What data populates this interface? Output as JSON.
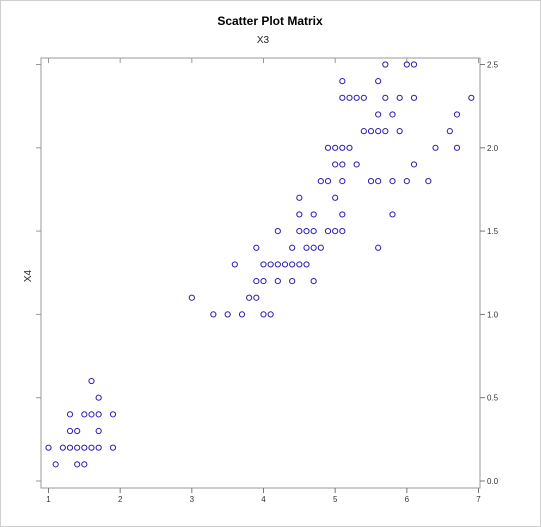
{
  "chart_data": {
    "type": "scatter",
    "title": "Scatter Plot Matrix",
    "top_label": "X3",
    "ylabel": "X4",
    "xlim": [
      1,
      7
    ],
    "ylim": [
      0,
      2.5
    ],
    "x_ticks": [
      1,
      2,
      3,
      4,
      5,
      6,
      7
    ],
    "y_ticks": [
      0.0,
      0.5,
      1.0,
      1.5,
      2.0,
      2.5
    ],
    "x_tick_labels": [
      "1",
      "2",
      "3",
      "4",
      "5",
      "6",
      "7"
    ],
    "y_tick_labels": [
      "0.0",
      "0.5",
      "1.0",
      "1.5",
      "2.0",
      "2.5"
    ],
    "y_axis_side": "right",
    "grid": false,
    "marker": "open-circle",
    "marker_color": "#2a1fb0",
    "points": [
      [
        1.0,
        0.2
      ],
      [
        1.1,
        0.1
      ],
      [
        1.2,
        0.2
      ],
      [
        1.3,
        0.2
      ],
      [
        1.3,
        0.3
      ],
      [
        1.3,
        0.4
      ],
      [
        1.4,
        0.1
      ],
      [
        1.4,
        0.2
      ],
      [
        1.4,
        0.3
      ],
      [
        1.5,
        0.1
      ],
      [
        1.5,
        0.2
      ],
      [
        1.5,
        0.4
      ],
      [
        1.6,
        0.2
      ],
      [
        1.6,
        0.4
      ],
      [
        1.6,
        0.6
      ],
      [
        1.7,
        0.2
      ],
      [
        1.7,
        0.3
      ],
      [
        1.7,
        0.4
      ],
      [
        1.7,
        0.5
      ],
      [
        1.9,
        0.2
      ],
      [
        1.9,
        0.4
      ],
      [
        3.0,
        1.1
      ],
      [
        3.3,
        1.0
      ],
      [
        3.5,
        1.0
      ],
      [
        3.6,
        1.3
      ],
      [
        3.7,
        1.0
      ],
      [
        3.8,
        1.1
      ],
      [
        3.9,
        1.1
      ],
      [
        3.9,
        1.2
      ],
      [
        3.9,
        1.4
      ],
      [
        4.0,
        1.0
      ],
      [
        4.0,
        1.2
      ],
      [
        4.0,
        1.3
      ],
      [
        4.1,
        1.0
      ],
      [
        4.1,
        1.3
      ],
      [
        4.2,
        1.2
      ],
      [
        4.2,
        1.3
      ],
      [
        4.2,
        1.5
      ],
      [
        4.3,
        1.3
      ],
      [
        4.4,
        1.2
      ],
      [
        4.4,
        1.3
      ],
      [
        4.4,
        1.4
      ],
      [
        4.5,
        1.3
      ],
      [
        4.5,
        1.5
      ],
      [
        4.5,
        1.6
      ],
      [
        4.5,
        1.7
      ],
      [
        4.6,
        1.3
      ],
      [
        4.6,
        1.4
      ],
      [
        4.6,
        1.5
      ],
      [
        4.7,
        1.2
      ],
      [
        4.7,
        1.4
      ],
      [
        4.7,
        1.5
      ],
      [
        4.7,
        1.6
      ],
      [
        4.8,
        1.4
      ],
      [
        4.8,
        1.8
      ],
      [
        4.9,
        1.5
      ],
      [
        4.9,
        1.8
      ],
      [
        4.9,
        2.0
      ],
      [
        5.0,
        1.5
      ],
      [
        5.0,
        1.7
      ],
      [
        5.0,
        1.9
      ],
      [
        5.0,
        2.0
      ],
      [
        5.1,
        1.5
      ],
      [
        5.1,
        1.6
      ],
      [
        5.1,
        1.8
      ],
      [
        5.1,
        1.9
      ],
      [
        5.1,
        2.0
      ],
      [
        5.1,
        2.3
      ],
      [
        5.1,
        2.4
      ],
      [
        5.2,
        2.0
      ],
      [
        5.2,
        2.3
      ],
      [
        5.3,
        1.9
      ],
      [
        5.3,
        2.3
      ],
      [
        5.4,
        2.1
      ],
      [
        5.4,
        2.3
      ],
      [
        5.5,
        1.8
      ],
      [
        5.5,
        2.1
      ],
      [
        5.6,
        1.4
      ],
      [
        5.6,
        1.8
      ],
      [
        5.6,
        2.1
      ],
      [
        5.6,
        2.2
      ],
      [
        5.6,
        2.4
      ],
      [
        5.7,
        2.1
      ],
      [
        5.7,
        2.3
      ],
      [
        5.7,
        2.5
      ],
      [
        5.8,
        1.6
      ],
      [
        5.8,
        1.8
      ],
      [
        5.8,
        2.2
      ],
      [
        5.9,
        2.1
      ],
      [
        5.9,
        2.3
      ],
      [
        6.0,
        1.8
      ],
      [
        6.0,
        2.5
      ],
      [
        6.1,
        1.9
      ],
      [
        6.1,
        2.3
      ],
      [
        6.1,
        2.5
      ],
      [
        6.3,
        1.8
      ],
      [
        6.4,
        2.0
      ],
      [
        6.6,
        2.1
      ],
      [
        6.7,
        2.0
      ],
      [
        6.7,
        2.2
      ],
      [
        6.9,
        2.3
      ]
    ]
  }
}
